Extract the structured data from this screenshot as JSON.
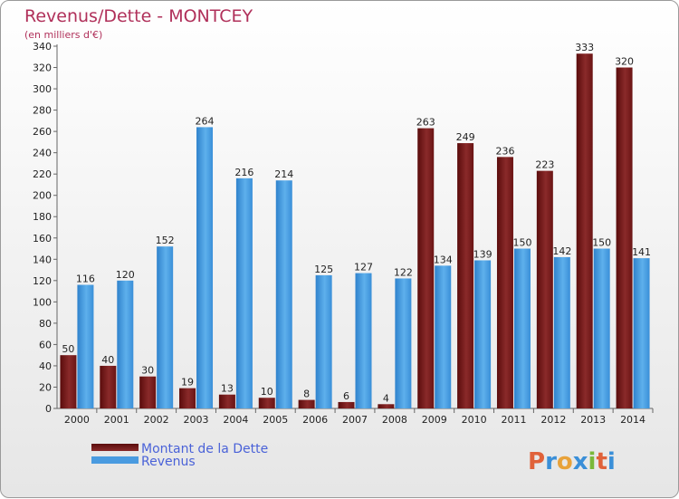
{
  "chart_data": {
    "type": "bar",
    "title": "Revenus/Dette - MONTCEY",
    "subtitle": "(en milliers d'€)",
    "categories": [
      "2000",
      "2001",
      "2002",
      "2003",
      "2004",
      "2005",
      "2006",
      "2007",
      "2008",
      "2009",
      "2010",
      "2011",
      "2012",
      "2013",
      "2014"
    ],
    "series": [
      {
        "name": "Montant de la Dette",
        "color": "#7a1a1a",
        "values": [
          50,
          40,
          30,
          19,
          13,
          10,
          8,
          6,
          4,
          263,
          249,
          236,
          223,
          333,
          320
        ]
      },
      {
        "name": "Revenus",
        "color": "#4a9be0",
        "values": [
          116,
          120,
          152,
          264,
          216,
          214,
          125,
          127,
          122,
          134,
          139,
          150,
          142,
          150,
          141
        ]
      }
    ],
    "ylim": [
      0,
      340
    ],
    "yticks": [
      0,
      20,
      40,
      60,
      80,
      100,
      120,
      140,
      160,
      180,
      200,
      220,
      240,
      260,
      280,
      300,
      320,
      340
    ],
    "grid": false,
    "legend": "bottom-left"
  },
  "brand": {
    "letters": [
      "P",
      "r",
      "o",
      "x",
      "i",
      "t",
      "i"
    ],
    "colors": [
      "#e0623a",
      "#3a8fd8",
      "#e8a23a",
      "#3a8fd8",
      "#7ab83a",
      "#e0623a",
      "#3a8fd8"
    ]
  }
}
